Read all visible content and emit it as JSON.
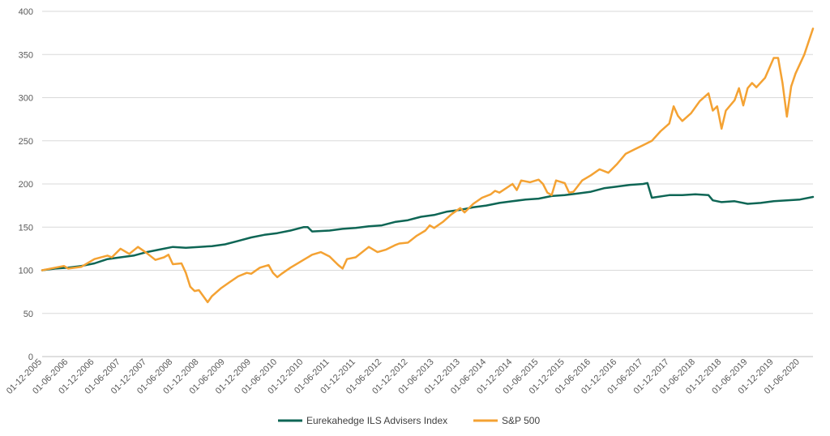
{
  "chart_data": {
    "type": "line",
    "title": "",
    "xlabel": "",
    "ylabel": "",
    "ylim": [
      0,
      400
    ],
    "y_ticks": [
      0,
      50,
      100,
      150,
      200,
      250,
      300,
      350,
      400
    ],
    "grid": "horizontal",
    "legend_position": "bottom",
    "x_tick_labels": [
      "01-12-2005",
      "01-06-2006",
      "01-12-2006",
      "01-06-2007",
      "01-12-2007",
      "01-06-2008",
      "01-12-2008",
      "01-06-2009",
      "01-12-2009",
      "01-06-2010",
      "01-12-2010",
      "01-06-2011",
      "01-12-2011",
      "01-06-2012",
      "01-12-2012",
      "01-06-2013",
      "01-12-2013",
      "01-06-2014",
      "01-12-2014",
      "01-06-2015",
      "01-12-2015",
      "01-06-2016",
      "01-12-2016",
      "01-06-2017",
      "01-12-2017",
      "01-06-2018",
      "01-12-2018",
      "01-06-2019",
      "01-12-2019",
      "01-06-2020"
    ],
    "series": [
      {
        "name": "Eurekahedge ILS Advisers Index",
        "color": "#0e6655",
        "points": [
          [
            "2005-12",
            100
          ],
          [
            "2006-03",
            102
          ],
          [
            "2006-06",
            103
          ],
          [
            "2006-09",
            105
          ],
          [
            "2006-12",
            108
          ],
          [
            "2007-03",
            113
          ],
          [
            "2007-06",
            115
          ],
          [
            "2007-09",
            117
          ],
          [
            "2007-12",
            121
          ],
          [
            "2008-03",
            124
          ],
          [
            "2008-06",
            127
          ],
          [
            "2008-09",
            126
          ],
          [
            "2008-12",
            127
          ],
          [
            "2009-03",
            128
          ],
          [
            "2009-06",
            130
          ],
          [
            "2009-09",
            134
          ],
          [
            "2009-12",
            138
          ],
          [
            "2010-03",
            141
          ],
          [
            "2010-06",
            143
          ],
          [
            "2010-09",
            146
          ],
          [
            "2010-12",
            150
          ],
          [
            "2011-01",
            150
          ],
          [
            "2011-02",
            145
          ],
          [
            "2011-06",
            146
          ],
          [
            "2011-09",
            148
          ],
          [
            "2011-12",
            149
          ],
          [
            "2012-03",
            151
          ],
          [
            "2012-06",
            152
          ],
          [
            "2012-09",
            156
          ],
          [
            "2012-12",
            158
          ],
          [
            "2013-03",
            162
          ],
          [
            "2013-06",
            164
          ],
          [
            "2013-09",
            168
          ],
          [
            "2013-12",
            170
          ],
          [
            "2014-03",
            173
          ],
          [
            "2014-06",
            175
          ],
          [
            "2014-09",
            178
          ],
          [
            "2014-12",
            180
          ],
          [
            "2015-03",
            182
          ],
          [
            "2015-06",
            183
          ],
          [
            "2015-09",
            186
          ],
          [
            "2015-12",
            187
          ],
          [
            "2016-03",
            189
          ],
          [
            "2016-06",
            191
          ],
          [
            "2016-09",
            195
          ],
          [
            "2016-12",
            197
          ],
          [
            "2017-03",
            199
          ],
          [
            "2017-06",
            200
          ],
          [
            "2017-07",
            201
          ],
          [
            "2017-08",
            184
          ],
          [
            "2017-12",
            187
          ],
          [
            "2018-03",
            187
          ],
          [
            "2018-06",
            188
          ],
          [
            "2018-09",
            187
          ],
          [
            "2018-10",
            181
          ],
          [
            "2018-12",
            179
          ],
          [
            "2019-03",
            180
          ],
          [
            "2019-06",
            177
          ],
          [
            "2019-09",
            178
          ],
          [
            "2019-12",
            180
          ],
          [
            "2020-03",
            181
          ],
          [
            "2020-06",
            182
          ],
          [
            "2020-09",
            185
          ]
        ]
      },
      {
        "name": "S&P 500",
        "color": "#f4a233",
        "points": [
          [
            "2005-12",
            100
          ],
          [
            "2006-03",
            103
          ],
          [
            "2006-05",
            105
          ],
          [
            "2006-06",
            102
          ],
          [
            "2006-09",
            104
          ],
          [
            "2006-12",
            113
          ],
          [
            "2007-03",
            117
          ],
          [
            "2007-04",
            115
          ],
          [
            "2007-06",
            125
          ],
          [
            "2007-08",
            119
          ],
          [
            "2007-10",
            127
          ],
          [
            "2007-12",
            120
          ],
          [
            "2008-02",
            112
          ],
          [
            "2008-04",
            115
          ],
          [
            "2008-05",
            118
          ],
          [
            "2008-06",
            107
          ],
          [
            "2008-08",
            108
          ],
          [
            "2008-09",
            97
          ],
          [
            "2008-10",
            81
          ],
          [
            "2008-11",
            76
          ],
          [
            "2008-12",
            77
          ],
          [
            "2009-02",
            63
          ],
          [
            "2009-03",
            70
          ],
          [
            "2009-05",
            79
          ],
          [
            "2009-07",
            86
          ],
          [
            "2009-09",
            93
          ],
          [
            "2009-11",
            97
          ],
          [
            "2009-12",
            96
          ],
          [
            "2010-02",
            103
          ],
          [
            "2010-04",
            106
          ],
          [
            "2010-05",
            97
          ],
          [
            "2010-06",
            92
          ],
          [
            "2010-07",
            96
          ],
          [
            "2010-09",
            103
          ],
          [
            "2010-11",
            109
          ],
          [
            "2010-12",
            112
          ],
          [
            "2011-02",
            118
          ],
          [
            "2011-04",
            121
          ],
          [
            "2011-06",
            116
          ],
          [
            "2011-08",
            106
          ],
          [
            "2011-09",
            102
          ],
          [
            "2011-10",
            113
          ],
          [
            "2011-12",
            115
          ],
          [
            "2012-03",
            127
          ],
          [
            "2012-05",
            121
          ],
          [
            "2012-07",
            124
          ],
          [
            "2012-09",
            129
          ],
          [
            "2012-10",
            131
          ],
          [
            "2012-12",
            132
          ],
          [
            "2013-02",
            140
          ],
          [
            "2013-04",
            146
          ],
          [
            "2013-05",
            152
          ],
          [
            "2013-06",
            149
          ],
          [
            "2013-08",
            156
          ],
          [
            "2013-10",
            165
          ],
          [
            "2013-12",
            172
          ],
          [
            "2014-01",
            167
          ],
          [
            "2014-03",
            177
          ],
          [
            "2014-05",
            184
          ],
          [
            "2014-07",
            188
          ],
          [
            "2014-08",
            192
          ],
          [
            "2014-09",
            190
          ],
          [
            "2014-12",
            200
          ],
          [
            "2015-01",
            193
          ],
          [
            "2015-02",
            204
          ],
          [
            "2015-04",
            202
          ],
          [
            "2015-06",
            205
          ],
          [
            "2015-07",
            200
          ],
          [
            "2015-08",
            190
          ],
          [
            "2015-09",
            187
          ],
          [
            "2015-10",
            204
          ],
          [
            "2015-12",
            201
          ],
          [
            "2016-01",
            190
          ],
          [
            "2016-02",
            191
          ],
          [
            "2016-04",
            204
          ],
          [
            "2016-06",
            210
          ],
          [
            "2016-08",
            217
          ],
          [
            "2016-10",
            213
          ],
          [
            "2016-12",
            223
          ],
          [
            "2017-02",
            235
          ],
          [
            "2017-04",
            240
          ],
          [
            "2017-06",
            245
          ],
          [
            "2017-08",
            250
          ],
          [
            "2017-10",
            261
          ],
          [
            "2017-12",
            270
          ],
          [
            "2018-01",
            290
          ],
          [
            "2018-02",
            279
          ],
          [
            "2018-03",
            273
          ],
          [
            "2018-05",
            282
          ],
          [
            "2018-07",
            296
          ],
          [
            "2018-09",
            305
          ],
          [
            "2018-10",
            285
          ],
          [
            "2018-11",
            290
          ],
          [
            "2018-12",
            264
          ],
          [
            "2019-01",
            285
          ],
          [
            "2019-03",
            297
          ],
          [
            "2019-04",
            311
          ],
          [
            "2019-05",
            291
          ],
          [
            "2019-06",
            311
          ],
          [
            "2019-07",
            317
          ],
          [
            "2019-08",
            312
          ],
          [
            "2019-10",
            323
          ],
          [
            "2019-12",
            346
          ],
          [
            "2020-01",
            346
          ],
          [
            "2020-02",
            317
          ],
          [
            "2020-03",
            278
          ],
          [
            "2020-04",
            313
          ],
          [
            "2020-05",
            328
          ],
          [
            "2020-07",
            350
          ],
          [
            "2020-09",
            380
          ]
        ]
      }
    ]
  }
}
